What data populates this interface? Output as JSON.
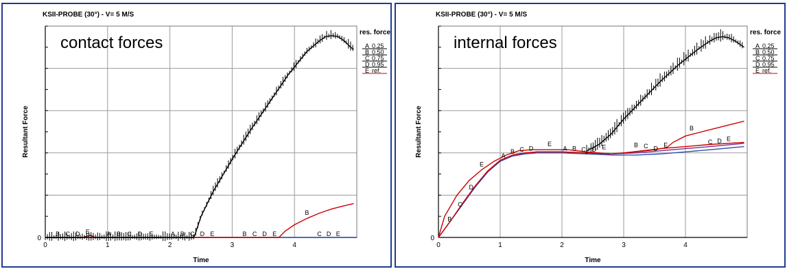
{
  "chart_data": [
    {
      "type": "line",
      "title": "KSII-PROBE (30°) - V= 5 M/S",
      "annotation": "contact forces",
      "xlabel": "Time",
      "ylabel": "Resultant Force",
      "xlim": [
        0,
        5
      ],
      "ylim": [
        0,
        1
      ],
      "xticks": [
        "0",
        "1",
        "2",
        "3",
        "4"
      ],
      "yticks": [
        "0"
      ],
      "grid": true,
      "legend_title": "res. force",
      "legend_position": "right",
      "legend": [
        {
          "letter": "A",
          "label": "0.25",
          "color": "#000000"
        },
        {
          "letter": "B",
          "label": "0.50",
          "color": "#000000"
        },
        {
          "letter": "C",
          "label": "0.75",
          "color": "#000000"
        },
        {
          "letter": "D",
          "label": "0.95",
          "color": "#000000"
        },
        {
          "letter": "E",
          "label": "ref.",
          "color": "#cc0000"
        }
      ],
      "series": [
        {
          "letter": "A",
          "color": "#2a4fb0",
          "x": [
            0,
            0.6,
            0.72,
            0.8,
            5.0
          ],
          "y": [
            0,
            0,
            0.01,
            0,
            0
          ]
        },
        {
          "letter": "B",
          "color": "#cc0000",
          "x": [
            0,
            0.6,
            0.72,
            0.8,
            3.75,
            3.85,
            4.0,
            4.2,
            4.4,
            4.6,
            4.8,
            4.95
          ],
          "y": [
            0,
            0,
            0.01,
            0,
            0,
            0.03,
            0.06,
            0.09,
            0.115,
            0.135,
            0.15,
            0.16
          ]
        },
        {
          "letter": "E",
          "color": "#000000",
          "x": [
            0,
            2.38,
            2.4,
            2.5,
            2.7,
            3.0,
            3.3,
            3.6,
            3.9,
            4.2,
            4.4,
            4.5,
            4.6,
            4.7,
            4.8,
            4.9,
            4.95
          ],
          "y": [
            0,
            0,
            0.01,
            0.1,
            0.22,
            0.37,
            0.51,
            0.64,
            0.77,
            0.88,
            0.93,
            0.95,
            0.955,
            0.95,
            0.93,
            0.9,
            0.89
          ],
          "noise": true
        }
      ],
      "markers": [
        {
          "t": "B",
          "x": 0.2,
          "y": 0
        },
        {
          "t": "C",
          "x": 0.36,
          "y": 0
        },
        {
          "t": "D",
          "x": 0.52,
          "y": 0
        },
        {
          "t": "E",
          "x": 0.68,
          "y": 0.01
        },
        {
          "t": "A",
          "x": 1.02,
          "y": 0
        },
        {
          "t": "B",
          "x": 1.18,
          "y": 0
        },
        {
          "t": "C",
          "x": 1.35,
          "y": 0
        },
        {
          "t": "D",
          "x": 1.52,
          "y": 0
        },
        {
          "t": "E",
          "x": 1.7,
          "y": 0
        },
        {
          "t": "A",
          "x": 2.05,
          "y": 0
        },
        {
          "t": "B",
          "x": 2.2,
          "y": 0
        },
        {
          "t": "C",
          "x": 2.36,
          "y": 0
        },
        {
          "t": "D",
          "x": 2.52,
          "y": 0
        },
        {
          "t": "E",
          "x": 2.68,
          "y": 0
        },
        {
          "t": "B",
          "x": 3.2,
          "y": 0
        },
        {
          "t": "C",
          "x": 3.36,
          "y": 0
        },
        {
          "t": "D",
          "x": 3.52,
          "y": 0
        },
        {
          "t": "E",
          "x": 3.68,
          "y": 0
        },
        {
          "t": "B",
          "x": 4.2,
          "y": 0.1
        },
        {
          "t": "C",
          "x": 4.4,
          "y": 0
        },
        {
          "t": "D",
          "x": 4.55,
          "y": 0
        },
        {
          "t": "E",
          "x": 4.7,
          "y": 0
        }
      ]
    },
    {
      "type": "line",
      "title": "KSII-PROBE (30°) - V= 5 M/S",
      "annotation": "internal forces",
      "xlabel": "Time",
      "ylabel": "Resultant Force",
      "xlim": [
        0,
        5
      ],
      "ylim": [
        0,
        1
      ],
      "xticks": [
        "0",
        "1",
        "2",
        "3",
        "4"
      ],
      "yticks": [
        "0"
      ],
      "grid": true,
      "legend_title": "res. force",
      "legend_position": "right",
      "legend": [
        {
          "letter": "A",
          "label": "0.25",
          "color": "#000000"
        },
        {
          "letter": "B",
          "label": "0.50",
          "color": "#000000"
        },
        {
          "letter": "C",
          "label": "0.75",
          "color": "#000000"
        },
        {
          "letter": "D",
          "label": "0.95",
          "color": "#000000"
        },
        {
          "letter": "E",
          "label": "ref.",
          "color": "#cc0000"
        }
      ],
      "series": [
        {
          "letter": "A",
          "color": "#2a4fb0",
          "x": [
            0,
            0.2,
            0.4,
            0.6,
            0.8,
            1.0,
            1.2,
            1.4,
            1.6,
            2.0,
            2.4,
            2.8,
            3.2,
            3.6,
            4.0,
            4.4,
            4.95
          ],
          "y": [
            0,
            0.08,
            0.16,
            0.24,
            0.31,
            0.36,
            0.385,
            0.395,
            0.4,
            0.4,
            0.395,
            0.39,
            0.39,
            0.395,
            0.405,
            0.415,
            0.43
          ]
        },
        {
          "letter": "D",
          "color": "#7a2a8a",
          "x": [
            0,
            0.2,
            0.4,
            0.6,
            0.8,
            1.0,
            1.2,
            1.4,
            1.6,
            2.0,
            2.4,
            2.8,
            3.2,
            3.6,
            4.0,
            4.4,
            4.95
          ],
          "y": [
            0,
            0.08,
            0.165,
            0.245,
            0.315,
            0.365,
            0.39,
            0.4,
            0.405,
            0.405,
            0.4,
            0.395,
            0.4,
            0.41,
            0.42,
            0.43,
            0.445
          ]
        },
        {
          "letter": "B",
          "color": "#cc0000",
          "x": [
            0,
            0.2,
            0.4,
            0.6,
            0.8,
            1.0,
            1.2,
            1.4,
            1.6,
            2.0,
            2.4,
            2.8,
            3.2,
            3.5,
            3.7,
            3.8,
            4.0,
            4.4,
            4.95
          ],
          "y": [
            0,
            0.08,
            0.165,
            0.245,
            0.315,
            0.365,
            0.39,
            0.4,
            0.405,
            0.405,
            0.4,
            0.395,
            0.405,
            0.415,
            0.425,
            0.45,
            0.48,
            0.51,
            0.55
          ]
        },
        {
          "letter": "E",
          "color": "#cc0000",
          "x": [
            0,
            0.1,
            0.3,
            0.5,
            0.7,
            0.9,
            1.1,
            1.3,
            1.5,
            1.8,
            2.1,
            2.4,
            2.6,
            2.8,
            3.0,
            3.3,
            3.6,
            4.0,
            4.4,
            4.95
          ],
          "y": [
            0,
            0.1,
            0.2,
            0.27,
            0.32,
            0.36,
            0.39,
            0.41,
            0.415,
            0.415,
            0.415,
            0.405,
            0.4,
            0.395,
            0.4,
            0.41,
            0.42,
            0.43,
            0.44,
            0.45
          ]
        },
        {
          "letter": "C",
          "color": "#000000",
          "x": [
            2.4,
            2.6,
            2.8,
            3.0,
            3.3,
            3.6,
            3.9,
            4.2,
            4.4,
            4.5,
            4.6,
            4.7,
            4.8,
            4.9,
            4.95
          ],
          "y": [
            0.41,
            0.44,
            0.49,
            0.56,
            0.65,
            0.74,
            0.82,
            0.89,
            0.93,
            0.945,
            0.95,
            0.945,
            0.93,
            0.91,
            0.9
          ],
          "noise": true
        }
      ],
      "markers": [
        {
          "t": "B",
          "x": 0.18,
          "y": 0.07
        },
        {
          "t": "C",
          "x": 0.35,
          "y": 0.14
        },
        {
          "t": "D",
          "x": 0.53,
          "y": 0.22
        },
        {
          "t": "E",
          "x": 0.7,
          "y": 0.33
        },
        {
          "t": "A",
          "x": 1.05,
          "y": 0.37
        },
        {
          "t": "B",
          "x": 1.2,
          "y": 0.39
        },
        {
          "t": "C",
          "x": 1.35,
          "y": 0.4
        },
        {
          "t": "D",
          "x": 1.5,
          "y": 0.405
        },
        {
          "t": "E",
          "x": 1.8,
          "y": 0.425
        },
        {
          "t": "A",
          "x": 2.05,
          "y": 0.405
        },
        {
          "t": "B",
          "x": 2.2,
          "y": 0.405
        },
        {
          "t": "C",
          "x": 2.35,
          "y": 0.4
        },
        {
          "t": "D",
          "x": 2.52,
          "y": 0.4
        },
        {
          "t": "E",
          "x": 2.68,
          "y": 0.41
        },
        {
          "t": "B",
          "x": 3.2,
          "y": 0.42
        },
        {
          "t": "C",
          "x": 3.36,
          "y": 0.415
        },
        {
          "t": "D",
          "x": 3.52,
          "y": 0.405
        },
        {
          "t": "E",
          "x": 3.68,
          "y": 0.42
        },
        {
          "t": "B",
          "x": 4.1,
          "y": 0.5
        },
        {
          "t": "C",
          "x": 4.4,
          "y": 0.435
        },
        {
          "t": "D",
          "x": 4.55,
          "y": 0.44
        },
        {
          "t": "E",
          "x": 4.7,
          "y": 0.45
        }
      ]
    }
  ]
}
